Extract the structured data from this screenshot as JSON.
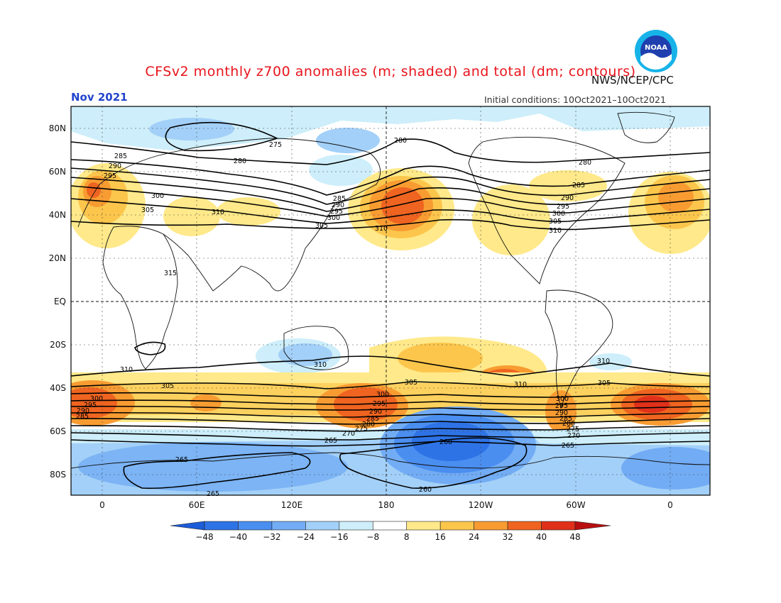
{
  "title": "CFSv2 monthly z700 anomalies (m; shaded) and total (dm; contours)",
  "organization": "NWS/NCEP/CPC",
  "month_label": "Nov 2021",
  "initial_conditions": "Initial conditions: 10Oct2021–10Oct2021",
  "logo_text": "NOAA",
  "lat_labels": [
    "80N",
    "60N",
    "40N",
    "20N",
    "EQ",
    "20S",
    "40S",
    "60S",
    "80S"
  ],
  "lon_labels": [
    "0",
    "60E",
    "120E",
    "180",
    "120W",
    "60W",
    "0"
  ],
  "colorbar": {
    "ticks": [
      "−48",
      "−40",
      "−32",
      "−24",
      "−16",
      "−8",
      "8",
      "16",
      "24",
      "32",
      "40",
      "48"
    ],
    "colors": [
      "#1c5cd8",
      "#2e73e6",
      "#4a8ef0",
      "#72acf4",
      "#a3d0f8",
      "#cdeefa",
      "#ffffff",
      "#ffe98a",
      "#fcc64c",
      "#f89c32",
      "#ef6420",
      "#e0301a",
      "#b80e10"
    ]
  },
  "contour_labels": [
    {
      "text": "275"
    },
    {
      "text": "280"
    },
    {
      "text": "280"
    },
    {
      "text": "280"
    },
    {
      "text": "285"
    },
    {
      "text": "290"
    },
    {
      "text": "295"
    },
    {
      "text": "300"
    },
    {
      "text": "305"
    },
    {
      "text": "310"
    },
    {
      "text": "285"
    },
    {
      "text": "290"
    },
    {
      "text": "295"
    },
    {
      "text": "300"
    },
    {
      "text": "305"
    },
    {
      "text": "310"
    },
    {
      "text": "285"
    },
    {
      "text": "290"
    },
    {
      "text": "295"
    },
    {
      "text": "300"
    },
    {
      "text": "305"
    },
    {
      "text": "310"
    },
    {
      "text": "315"
    },
    {
      "text": "310"
    },
    {
      "text": "310"
    },
    {
      "text": "310"
    },
    {
      "text": "310"
    },
    {
      "text": "305"
    },
    {
      "text": "305"
    },
    {
      "text": "305"
    },
    {
      "text": "300"
    },
    {
      "text": "295"
    },
    {
      "text": "290"
    },
    {
      "text": "285"
    },
    {
      "text": "300"
    },
    {
      "text": "295"
    },
    {
      "text": "290"
    },
    {
      "text": "285"
    },
    {
      "text": "280"
    },
    {
      "text": "275"
    },
    {
      "text": "270"
    },
    {
      "text": "300"
    },
    {
      "text": "295"
    },
    {
      "text": "290"
    },
    {
      "text": "285"
    },
    {
      "text": "280"
    },
    {
      "text": "275"
    },
    {
      "text": "270"
    },
    {
      "text": "265"
    },
    {
      "text": "265"
    },
    {
      "text": "265"
    },
    {
      "text": "260"
    },
    {
      "text": "260"
    },
    {
      "text": "265"
    }
  ]
}
